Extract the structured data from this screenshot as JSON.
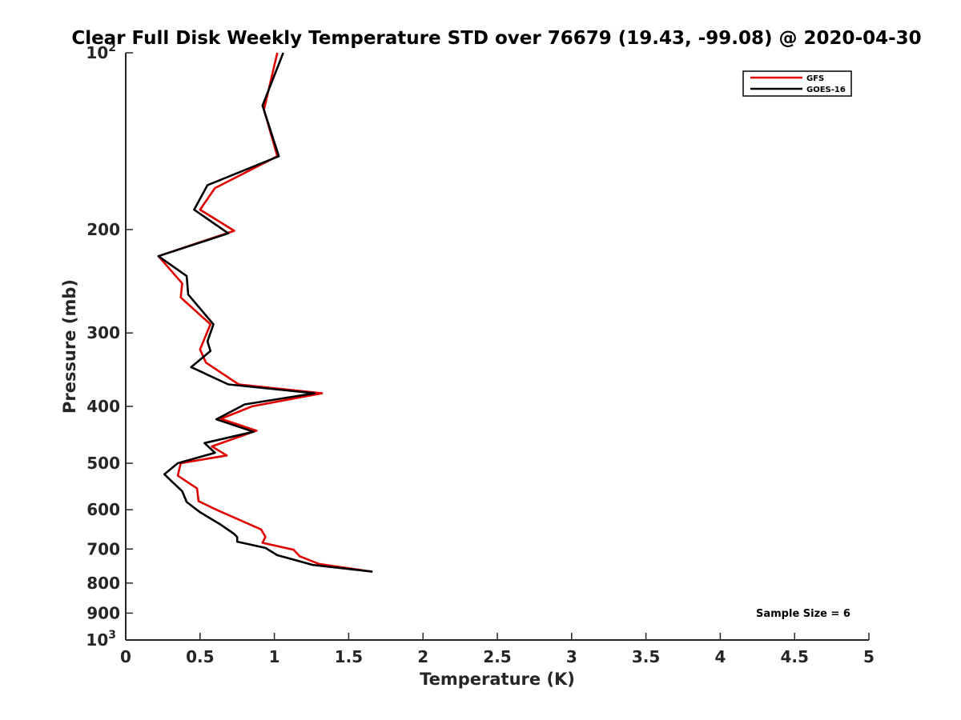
{
  "chart_data": {
    "type": "line",
    "title": "Clear Full Disk Weekly Temperature STD over 76679 (19.43, -99.08) @ 2020-04-30",
    "xlabel": "Temperature (K)",
    "ylabel": "Pressure (mb)",
    "xlim": [
      0,
      5
    ],
    "ylim": [
      100,
      1000
    ],
    "y_scale": "log",
    "y_reversed": true,
    "grid": false,
    "legend_position": "top-right",
    "x_ticks": [
      0,
      0.5,
      1,
      1.5,
      2,
      2.5,
      3,
      3.5,
      4,
      4.5,
      5
    ],
    "x_tick_labels": [
      "0",
      "0.5",
      "1",
      "1.5",
      "2",
      "2.5",
      "3",
      "3.5",
      "4",
      "4.5",
      "5"
    ],
    "y_ticks": [
      100,
      200,
      300,
      400,
      500,
      600,
      700,
      800,
      900,
      1000
    ],
    "y_tick_labels": [
      {
        "base": "10",
        "exp": "2"
      },
      {
        "base": "200",
        "exp": ""
      },
      {
        "base": "300",
        "exp": ""
      },
      {
        "base": "400",
        "exp": ""
      },
      {
        "base": "500",
        "exp": ""
      },
      {
        "base": "600",
        "exp": ""
      },
      {
        "base": "700",
        "exp": ""
      },
      {
        "base": "800",
        "exp": ""
      },
      {
        "base": "900",
        "exp": ""
      },
      {
        "base": "10",
        "exp": "3"
      }
    ],
    "series": [
      {
        "name": "GFS",
        "color": "#e00000",
        "points": [
          {
            "x": 1.02,
            "y": 100
          },
          {
            "x": 0.93,
            "y": 125
          },
          {
            "x": 1.02,
            "y": 150
          },
          {
            "x": 0.6,
            "y": 170
          },
          {
            "x": 0.5,
            "y": 185
          },
          {
            "x": 0.73,
            "y": 201
          },
          {
            "x": 0.22,
            "y": 222
          },
          {
            "x": 0.38,
            "y": 247
          },
          {
            "x": 0.37,
            "y": 261
          },
          {
            "x": 0.57,
            "y": 290
          },
          {
            "x": 0.5,
            "y": 320
          },
          {
            "x": 0.54,
            "y": 337
          },
          {
            "x": 0.76,
            "y": 367
          },
          {
            "x": 1.32,
            "y": 380
          },
          {
            "x": 0.85,
            "y": 400
          },
          {
            "x": 0.64,
            "y": 420
          },
          {
            "x": 0.88,
            "y": 440
          },
          {
            "x": 0.58,
            "y": 468
          },
          {
            "x": 0.68,
            "y": 485
          },
          {
            "x": 0.37,
            "y": 500
          },
          {
            "x": 0.35,
            "y": 525
          },
          {
            "x": 0.48,
            "y": 552
          },
          {
            "x": 0.49,
            "y": 580
          },
          {
            "x": 0.61,
            "y": 600
          },
          {
            "x": 0.91,
            "y": 648
          },
          {
            "x": 0.94,
            "y": 667
          },
          {
            "x": 0.92,
            "y": 683
          },
          {
            "x": 1.13,
            "y": 702
          },
          {
            "x": 1.17,
            "y": 720
          },
          {
            "x": 1.3,
            "y": 742
          },
          {
            "x": 1.66,
            "y": 765
          }
        ]
      },
      {
        "name": "GOES-16",
        "color": "#000000",
        "points": [
          {
            "x": 1.06,
            "y": 100
          },
          {
            "x": 0.92,
            "y": 123
          },
          {
            "x": 1.03,
            "y": 150
          },
          {
            "x": 0.55,
            "y": 168
          },
          {
            "x": 0.46,
            "y": 185
          },
          {
            "x": 0.69,
            "y": 203
          },
          {
            "x": 0.22,
            "y": 222
          },
          {
            "x": 0.41,
            "y": 240
          },
          {
            "x": 0.42,
            "y": 258
          },
          {
            "x": 0.59,
            "y": 290
          },
          {
            "x": 0.55,
            "y": 310
          },
          {
            "x": 0.57,
            "y": 322
          },
          {
            "x": 0.44,
            "y": 343
          },
          {
            "x": 0.69,
            "y": 367
          },
          {
            "x": 1.27,
            "y": 380
          },
          {
            "x": 0.8,
            "y": 397
          },
          {
            "x": 0.61,
            "y": 421
          },
          {
            "x": 0.86,
            "y": 442
          },
          {
            "x": 0.53,
            "y": 462
          },
          {
            "x": 0.6,
            "y": 480
          },
          {
            "x": 0.35,
            "y": 500
          },
          {
            "x": 0.26,
            "y": 522
          },
          {
            "x": 0.32,
            "y": 540
          },
          {
            "x": 0.38,
            "y": 558
          },
          {
            "x": 0.41,
            "y": 582
          },
          {
            "x": 0.5,
            "y": 606
          },
          {
            "x": 0.63,
            "y": 634
          },
          {
            "x": 0.73,
            "y": 660
          },
          {
            "x": 0.75,
            "y": 668
          },
          {
            "x": 0.75,
            "y": 680
          },
          {
            "x": 0.94,
            "y": 697
          },
          {
            "x": 1.02,
            "y": 717
          },
          {
            "x": 1.26,
            "y": 745
          },
          {
            "x": 1.66,
            "y": 765
          }
        ]
      }
    ],
    "annotation": "Sample Size = 6"
  }
}
